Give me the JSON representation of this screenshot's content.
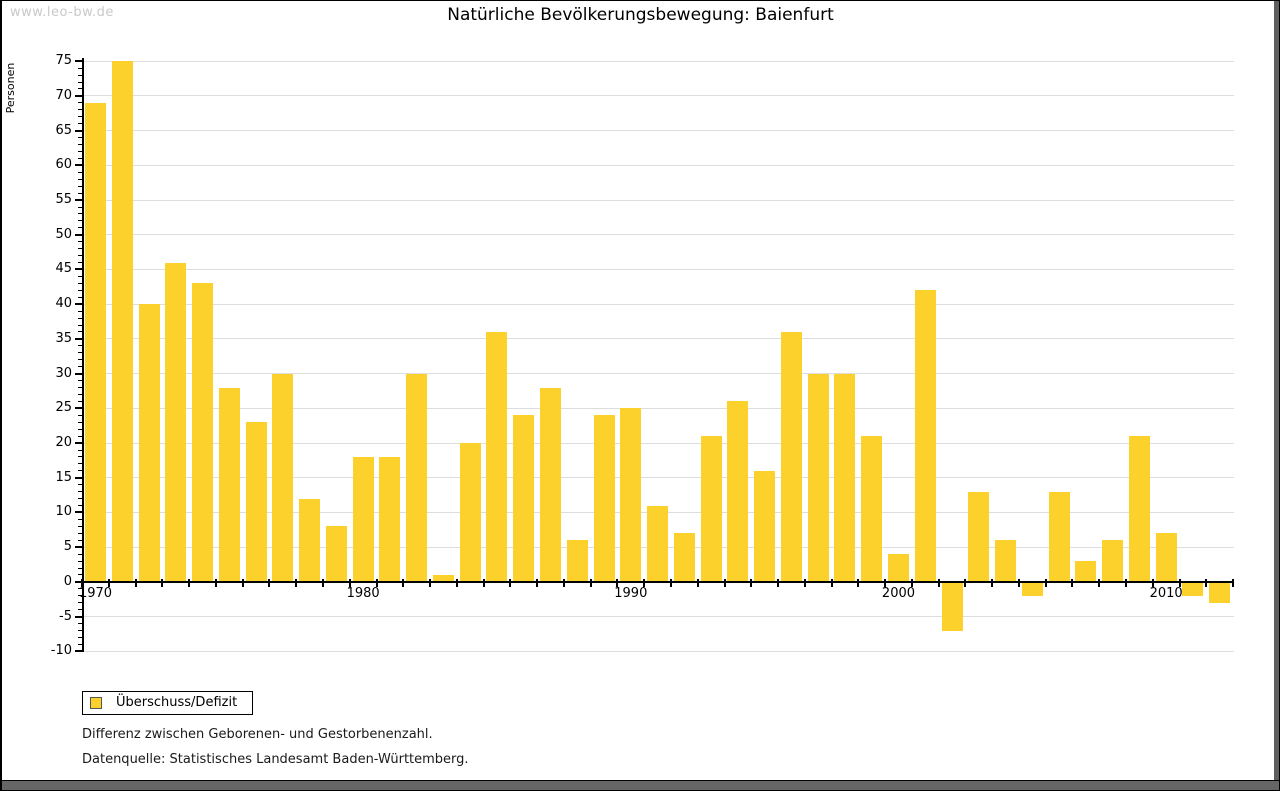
{
  "watermark": "www.leo-bw.de",
  "title": "Natürliche Bevölkerungsbewegung: Baienfurt",
  "y_axis": {
    "label": "Personen",
    "min": -10,
    "max": 75,
    "major_step": 5,
    "minor_step": 1,
    "tick_labels": [
      75,
      70,
      65,
      60,
      55,
      50,
      45,
      40,
      35,
      30,
      25,
      20,
      15,
      10,
      5,
      0,
      -5,
      -10
    ]
  },
  "x_axis": {
    "tick_years": [
      1970,
      1980,
      1990,
      2000,
      2010
    ]
  },
  "legend": {
    "label": "Überschuss/Defizit"
  },
  "notes": [
    "Differenz zwischen Geborenen- und Gestorbenenzahl.",
    "Datenquelle: Statistisches Landesamt Baden-Württemberg."
  ],
  "colors": {
    "bar": "#FCD12B",
    "grid": "#DDDDDD",
    "axis": "#000000",
    "watermark": "#C9C9C9",
    "chrome": "#666666"
  },
  "chart_data": {
    "type": "bar",
    "title": "Natürliche Bevölkerungsbewegung: Baienfurt",
    "xlabel": "",
    "ylabel": "Personen",
    "ylim": [
      -10,
      75
    ],
    "grid": true,
    "legend_position": "bottom-left",
    "series_name": "Überschuss/Defizit",
    "years": [
      1970,
      1971,
      1972,
      1973,
      1974,
      1975,
      1976,
      1977,
      1978,
      1979,
      1980,
      1981,
      1982,
      1983,
      1984,
      1985,
      1986,
      1987,
      1988,
      1989,
      1990,
      1991,
      1992,
      1993,
      1994,
      1995,
      1996,
      1997,
      1998,
      1999,
      2000,
      2001,
      2002,
      2003,
      2004,
      2005,
      2006,
      2007,
      2008,
      2009,
      2010,
      2011,
      2012
    ],
    "values": [
      69,
      75,
      40,
      46,
      43,
      28,
      23,
      30,
      12,
      8,
      18,
      18,
      30,
      1,
      20,
      36,
      24,
      28,
      6,
      24,
      25,
      11,
      7,
      21,
      26,
      16,
      36,
      30,
      30,
      21,
      4,
      42,
      -7,
      13,
      6,
      -2,
      13,
      3,
      6,
      21,
      7,
      -2,
      -3
    ]
  }
}
